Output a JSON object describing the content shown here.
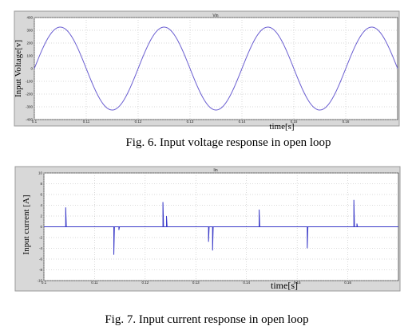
{
  "chart_data": [
    {
      "type": "line",
      "window_title": "Vin",
      "caption": "Fig. 6. Input voltage response in open loop",
      "xlabel": "time[s]",
      "ylabel": "Input Voltage[v]",
      "xlim": [
        0.1,
        0.17
      ],
      "ylim": [
        -400,
        400
      ],
      "xticks": [
        0.1,
        0.11,
        0.12,
        0.13,
        0.14,
        0.15,
        0.16
      ],
      "xtick_labels": [
        "0.1",
        "0.11",
        "0.12",
        "0.13",
        "0.14",
        "0.15",
        "0.16"
      ],
      "yticks": [
        400,
        300,
        200,
        100,
        0,
        -100,
        -200,
        -300,
        -400
      ],
      "ytick_labels": [
        "400",
        "300",
        "200",
        "100",
        "0",
        "-100",
        "-200",
        "-300",
        "-400"
      ],
      "grid": true,
      "series": [
        {
          "amplitude": 325,
          "frequency_hz": 50,
          "phase_peak_time": 0.105,
          "color": "#6b5fd1"
        }
      ]
    },
    {
      "type": "line",
      "window_title": "Iin",
      "caption": "Fig. 7. Input current response in open loop",
      "xlabel": "time[s]",
      "ylabel": "Input current [A]",
      "xlim": [
        0.1,
        0.17
      ],
      "ylim": [
        -10,
        10
      ],
      "xticks": [
        0.1,
        0.11,
        0.12,
        0.13,
        0.14,
        0.15,
        0.16
      ],
      "xtick_labels": [
        "0.1",
        "0.11",
        "0.12",
        "0.13",
        "0.14",
        "0.15",
        "0.16"
      ],
      "yticks": [
        10,
        8,
        6,
        4,
        2,
        0,
        -2,
        -4,
        -6,
        -8,
        -10
      ],
      "ytick_labels": [
        "10",
        "8",
        "6",
        "4",
        "2",
        "0",
        "-2",
        "-4",
        "-6",
        "-8",
        "-10"
      ],
      "grid": true,
      "series": [
        {
          "color": "#3a3ac8",
          "spikes": [
            {
              "x": 0.1043,
              "y": 3.6
            },
            {
              "x": 0.1138,
              "y": -5.2
            },
            {
              "x": 0.1148,
              "y": -0.6
            },
            {
              "x": 0.1235,
              "y": 4.6
            },
            {
              "x": 0.1242,
              "y": 2.0
            },
            {
              "x": 0.1325,
              "y": -2.8
            },
            {
              "x": 0.1333,
              "y": -4.4
            },
            {
              "x": 0.1425,
              "y": 3.2
            },
            {
              "x": 0.152,
              "y": -4.0
            },
            {
              "x": 0.1612,
              "y": 5.0
            },
            {
              "x": 0.1618,
              "y": 0.6
            }
          ]
        }
      ]
    }
  ]
}
